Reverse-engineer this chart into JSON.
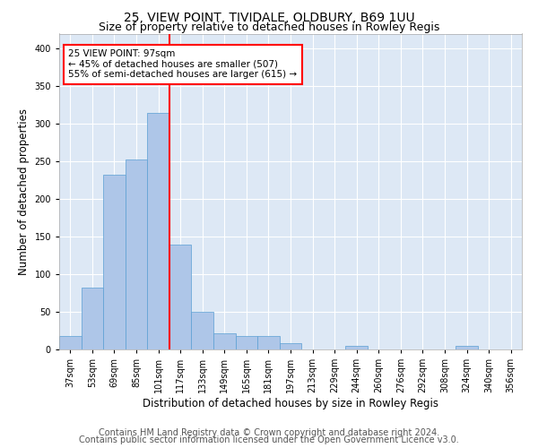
{
  "title1": "25, VIEW POINT, TIVIDALE, OLDBURY, B69 1UU",
  "title2": "Size of property relative to detached houses in Rowley Regis",
  "xlabel": "Distribution of detached houses by size in Rowley Regis",
  "ylabel": "Number of detached properties",
  "footer1": "Contains HM Land Registry data © Crown copyright and database right 2024.",
  "footer2": "Contains public sector information licensed under the Open Government Licence v3.0.",
  "annotation_line1": "25 VIEW POINT: 97sqm",
  "annotation_line2": "← 45% of detached houses are smaller (507)",
  "annotation_line3": "55% of semi-detached houses are larger (615) →",
  "bins": [
    "37sqm",
    "53sqm",
    "69sqm",
    "85sqm",
    "101sqm",
    "117sqm",
    "133sqm",
    "149sqm",
    "165sqm",
    "181sqm",
    "197sqm",
    "213sqm",
    "229sqm",
    "244sqm",
    "260sqm",
    "276sqm",
    "292sqm",
    "308sqm",
    "324sqm",
    "340sqm",
    "356sqm"
  ],
  "bar_values": [
    18,
    82,
    232,
    253,
    315,
    140,
    50,
    22,
    18,
    18,
    8,
    0,
    0,
    5,
    0,
    0,
    0,
    0,
    5,
    0,
    0
  ],
  "bar_color": "#aec6e8",
  "bar_edge_color": "#5a9fd4",
  "vline_color": "red",
  "ylim": [
    0,
    420
  ],
  "yticks": [
    0,
    50,
    100,
    150,
    200,
    250,
    300,
    350,
    400
  ],
  "bg_color": "#dde8f5",
  "grid_color": "#ffffff",
  "annotation_box_color": "white",
  "annotation_box_edge": "red",
  "title1_fontsize": 10,
  "title2_fontsize": 9,
  "xlabel_fontsize": 8.5,
  "ylabel_fontsize": 8.5,
  "footer_fontsize": 7,
  "tick_fontsize": 7
}
